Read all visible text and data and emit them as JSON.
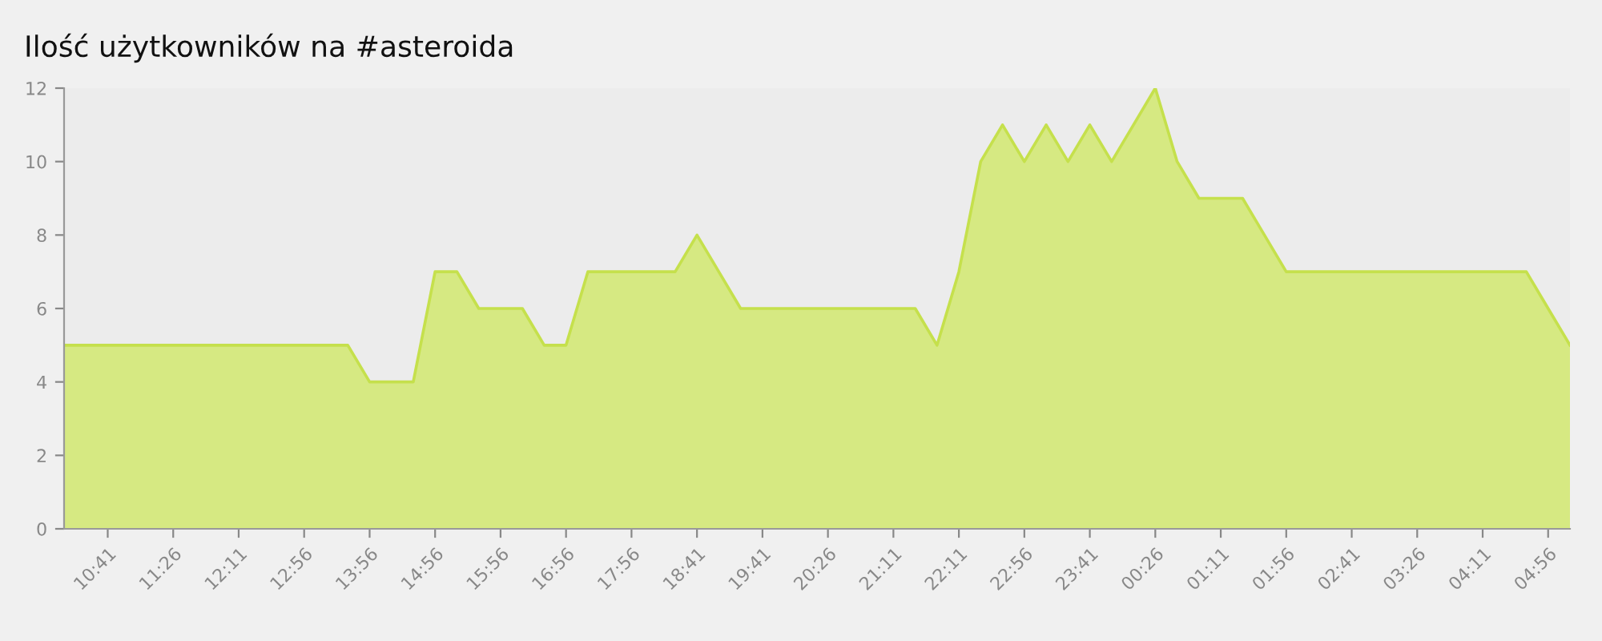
{
  "chart_data": {
    "type": "area",
    "title": "Ilość użytkowników na #asteroida",
    "categories": [
      null,
      null,
      "10:41",
      null,
      null,
      "11:26",
      null,
      null,
      "12:11",
      null,
      null,
      "12:56",
      null,
      null,
      "13:56",
      null,
      null,
      "14:56",
      null,
      null,
      "15:56",
      null,
      null,
      "16:56",
      null,
      null,
      "17:56",
      null,
      null,
      "18:41",
      null,
      null,
      "19:41",
      null,
      null,
      "20:26",
      null,
      null,
      "21:11",
      null,
      null,
      "22:11",
      null,
      null,
      "22:56",
      null,
      null,
      "23:41",
      null,
      null,
      "00:26",
      null,
      null,
      "01:11",
      null,
      null,
      "01:56",
      null,
      null,
      "02:41",
      null,
      null,
      "03:26",
      null,
      null,
      "04:11",
      null,
      null,
      "04:56",
      null
    ],
    "series": [
      {
        "color": "#c5e04c",
        "values": [
          5,
          5,
          5,
          5,
          5,
          5,
          5,
          5,
          5,
          5,
          5,
          5,
          5,
          5,
          4,
          4,
          4,
          7,
          7,
          6,
          6,
          6,
          5,
          5,
          7,
          7,
          7,
          7,
          7,
          8,
          7,
          6,
          6,
          6,
          6,
          6,
          6,
          6,
          6,
          6,
          5,
          7,
          10,
          11,
          10,
          11,
          10,
          11,
          10,
          11,
          12,
          10,
          9,
          9,
          9,
          8,
          7,
          7,
          7,
          7,
          7,
          7,
          7,
          7,
          7,
          7,
          7,
          7,
          6,
          5
        ]
      }
    ],
    "ylim": [
      0,
      12
    ],
    "yticks": [
      0,
      2,
      4,
      6,
      8,
      10,
      12
    ],
    "grid": false,
    "marker": "none",
    "line_style": "solid"
  }
}
